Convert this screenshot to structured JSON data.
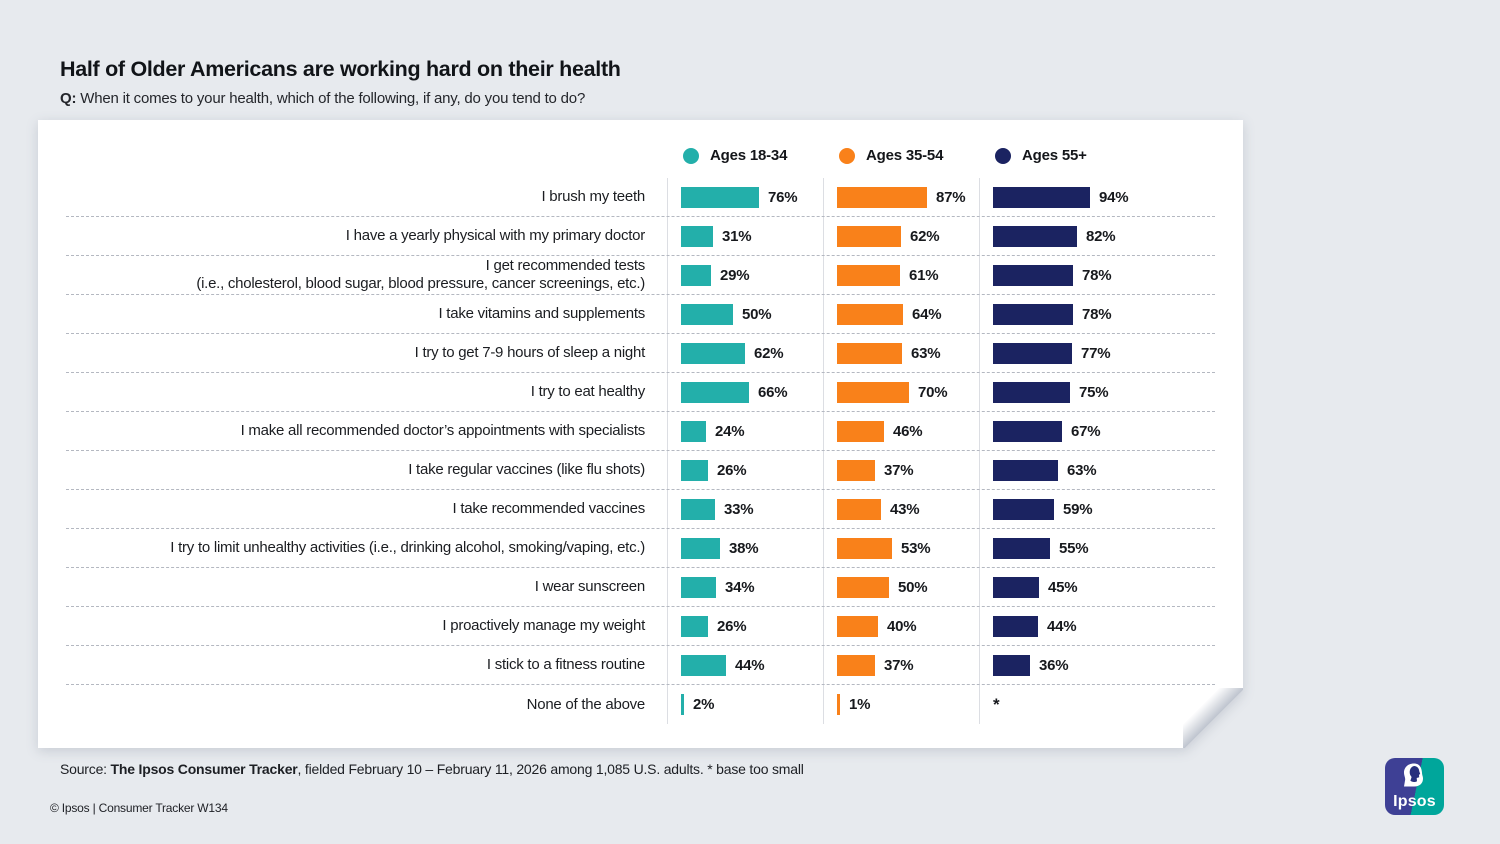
{
  "header": {
    "title": "Half of Older Americans are working hard on their health",
    "question_prefix": "Q:",
    "question": " When it comes to your health, which of the following, if any, do you tend to do?"
  },
  "theme": {
    "background": "#e7eaee",
    "card": "#ffffff",
    "teal": "#23afaa",
    "orange": "#f9811a",
    "navy": "#1b2361",
    "dashed_separator": "#b4b8c1",
    "column_separator": "#dcdee3"
  },
  "chart_data": {
    "type": "bar",
    "orientation": "horizontal",
    "legend_position": "top",
    "xlim": [
      0,
      100
    ],
    "value_suffix": "%",
    "grid": "dashed row separators, light vertical column dividers",
    "title": "Half of Older Americans are working hard on their health",
    "categories": [
      "I brush my teeth",
      "I have a yearly physical with my primary doctor",
      "I get recommended tests\n(i.e., cholesterol, blood sugar, blood pressure, cancer screenings, etc.)",
      "I take vitamins and supplements",
      "I try to get 7-9 hours of sleep a night",
      "I try to eat healthy",
      "I make all recommended doctor’s appointments with specialists",
      "I take regular vaccines (like flu shots)",
      "I take recommended vaccines",
      "I try to limit unhealthy activities (i.e., drinking alcohol, smoking/vaping, etc.)",
      "I wear sunscreen",
      "I proactively manage my weight",
      "I stick to a fitness routine",
      "None of the above"
    ],
    "series": [
      {
        "name": "Ages 18-34",
        "color": "#23afaa",
        "values": [
          76,
          31,
          29,
          50,
          62,
          66,
          24,
          26,
          33,
          38,
          34,
          26,
          44,
          2
        ],
        "display": [
          "76%",
          "31%",
          "29%",
          "50%",
          "62%",
          "66%",
          "24%",
          "26%",
          "33%",
          "38%",
          "34%",
          "26%",
          "44%",
          "2%"
        ]
      },
      {
        "name": "Ages 35-54",
        "color": "#f9811a",
        "values": [
          87,
          62,
          61,
          64,
          63,
          70,
          46,
          37,
          43,
          53,
          50,
          40,
          37,
          1
        ],
        "display": [
          "87%",
          "62%",
          "61%",
          "64%",
          "63%",
          "70%",
          "46%",
          "37%",
          "43%",
          "53%",
          "50%",
          "40%",
          "37%",
          "1%"
        ]
      },
      {
        "name": "Ages 55+",
        "color": "#1b2361",
        "values": [
          94,
          82,
          78,
          78,
          77,
          75,
          67,
          63,
          59,
          55,
          45,
          44,
          36,
          null
        ],
        "display": [
          "94%",
          "82%",
          "78%",
          "78%",
          "77%",
          "75%",
          "67%",
          "63%",
          "59%",
          "55%",
          "45%",
          "44%",
          "36%",
          "*"
        ]
      }
    ],
    "footnote": "* base too small"
  },
  "footer": {
    "source_prefix": "Source: ",
    "source_bold": "The Ipsos Consumer Tracker",
    "source_rest": ", fielded February 10 – February 11, 2026 among 1,085 U.S. adults. * base too small",
    "copyright": "© Ipsos | Consumer Tracker W134"
  },
  "logo": {
    "text": "Ipsos"
  }
}
